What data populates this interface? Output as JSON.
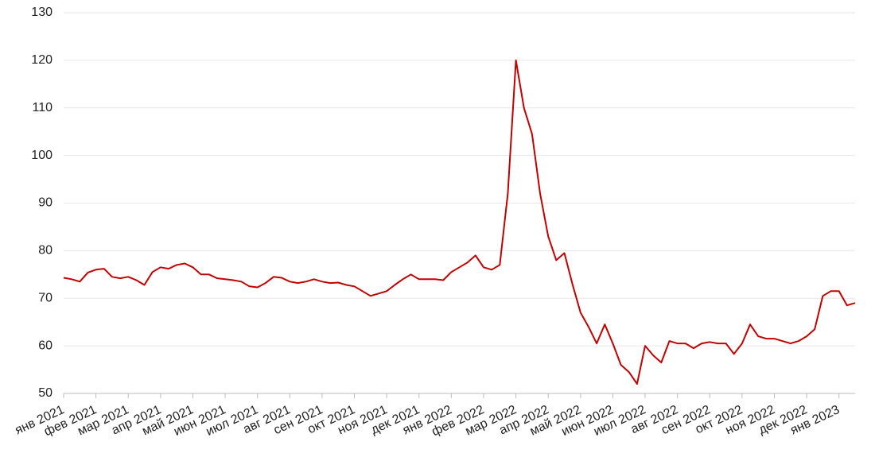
{
  "chart_data": {
    "type": "line",
    "categories": [
      "янв 2021",
      null,
      null,
      null,
      "фев 2021",
      null,
      null,
      null,
      "мар 2021",
      null,
      null,
      null,
      "апр 2021",
      null,
      null,
      null,
      "май 2021",
      null,
      null,
      null,
      "июн 2021",
      null,
      null,
      null,
      "июл 2021",
      null,
      null,
      null,
      "авг 2021",
      null,
      null,
      null,
      "сен 2021",
      null,
      null,
      null,
      "окт 2021",
      null,
      null,
      null,
      "ноя 2021",
      null,
      null,
      null,
      "дек 2021",
      null,
      null,
      null,
      "янв 2022",
      null,
      null,
      null,
      "фев 2022",
      null,
      null,
      null,
      "мар 2022",
      null,
      null,
      null,
      "апр 2022",
      null,
      null,
      null,
      "май 2022",
      null,
      null,
      null,
      "июн 2022",
      null,
      null,
      null,
      "июл 2022",
      null,
      null,
      null,
      "авг 2022",
      null,
      null,
      null,
      "сен 2022",
      null,
      null,
      null,
      "окт 2022",
      null,
      null,
      null,
      "ноя 2022",
      null,
      null,
      null,
      "дек 2022",
      null,
      null,
      null,
      "янв 2023",
      null,
      null
    ],
    "values": [
      74.3,
      74,
      73.5,
      75.4,
      76,
      76.2,
      74.5,
      74.2,
      74.5,
      73.8,
      72.8,
      75.5,
      76.5,
      76.2,
      77,
      77.3,
      76.5,
      75,
      75,
      74.2,
      74,
      73.8,
      73.5,
      72.5,
      72.3,
      73.2,
      74.5,
      74.3,
      73.5,
      73.2,
      73.5,
      74,
      73.5,
      73.2,
      73.3,
      72.8,
      72.5,
      71.5,
      70.5,
      71,
      71.5,
      72.8,
      74,
      75,
      74,
      74,
      74,
      73.8,
      75.5,
      76.5,
      77.5,
      79,
      76.5,
      76,
      77,
      92,
      120,
      110,
      104.5,
      92,
      83,
      78,
      79.5,
      73,
      67,
      64,
      60.5,
      64.5,
      60.5,
      56,
      54.5,
      52,
      60,
      58,
      56.5,
      61,
      60.5,
      60.5,
      59.5,
      60.5,
      60.8,
      60.5,
      60.5,
      58.3,
      60.5,
      64.5,
      62,
      61.5,
      61.5,
      61,
      60.5,
      61,
      62,
      63.5,
      70.5,
      71.5,
      71.5,
      68.5,
      69
    ],
    "color": "#c00000",
    "ylim": [
      50,
      130
    ],
    "yticks": [
      50,
      60,
      70,
      80,
      90,
      100,
      110,
      120,
      130
    ],
    "grid": true
  }
}
